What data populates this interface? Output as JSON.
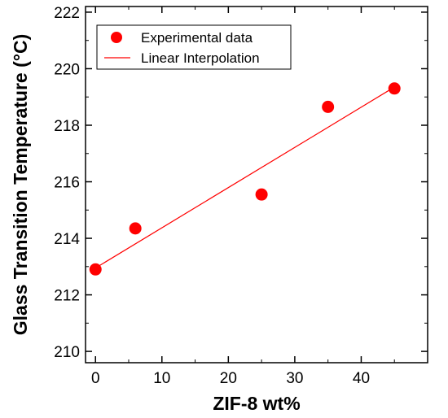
{
  "chart_data": {
    "type": "scatter",
    "xlabel": "ZIF-8 wt%",
    "ylabel": "Glass Transition Temperature (°C)",
    "xlim": [
      -1.5,
      50
    ],
    "ylim": [
      209.6,
      222.2
    ],
    "xticks": [
      0,
      10,
      20,
      30,
      40
    ],
    "yticks": [
      210,
      212,
      214,
      216,
      218,
      220,
      222
    ],
    "grid": false,
    "legend_position": "top-left",
    "series": [
      {
        "name": "Experimental data",
        "kind": "scatter",
        "color": "#ff0000",
        "x": [
          0,
          6,
          25,
          35,
          45
        ],
        "y": [
          212.9,
          214.35,
          215.55,
          218.65,
          219.3
        ]
      },
      {
        "name": "Linear Interpolation",
        "kind": "line",
        "color": "#ff0000",
        "x": [
          0,
          45
        ],
        "y": [
          212.95,
          219.35
        ]
      }
    ]
  }
}
